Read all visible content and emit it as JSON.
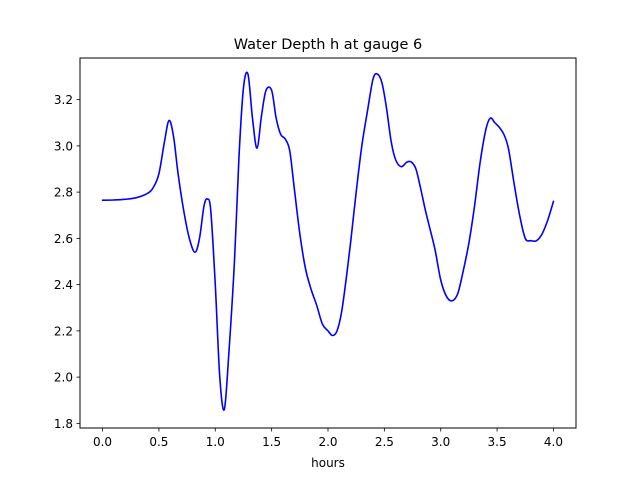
{
  "chart_data": {
    "type": "line",
    "title": "Water Depth h at gauge 6",
    "xlabel": "hours",
    "ylabel": "",
    "xlim": [
      -0.2,
      4.2
    ],
    "ylim": [
      1.78,
      3.38
    ],
    "xticks": [
      0.0,
      0.5,
      1.0,
      1.5,
      2.0,
      2.5,
      3.0,
      3.5,
      4.0
    ],
    "xtick_labels": [
      "0.0",
      "0.5",
      "1.0",
      "1.5",
      "2.0",
      "2.5",
      "3.0",
      "3.5",
      "4.0"
    ],
    "yticks": [
      1.8,
      2.0,
      2.2,
      2.4,
      2.6,
      2.8,
      3.0,
      3.2
    ],
    "ytick_labels": [
      "1.8",
      "2.0",
      "2.2",
      "2.4",
      "2.6",
      "2.8",
      "3.0",
      "3.2"
    ],
    "grid": false,
    "series": [
      {
        "color": "#0000ff",
        "x": [
          0.0,
          0.1,
          0.2,
          0.3,
          0.4,
          0.45,
          0.5,
          0.55,
          0.59,
          0.63,
          0.67,
          0.72,
          0.77,
          0.82,
          0.86,
          0.9,
          0.93,
          0.96,
          1.0,
          1.04,
          1.08,
          1.12,
          1.17,
          1.21,
          1.25,
          1.29,
          1.33,
          1.37,
          1.41,
          1.45,
          1.5,
          1.54,
          1.58,
          1.62,
          1.66,
          1.7,
          1.75,
          1.8,
          1.85,
          1.9,
          1.95,
          2.0,
          2.04,
          2.08,
          2.12,
          2.16,
          2.2,
          2.25,
          2.3,
          2.35,
          2.4,
          2.44,
          2.48,
          2.52,
          2.56,
          2.6,
          2.65,
          2.7,
          2.74,
          2.78,
          2.82,
          2.86,
          2.9,
          2.95,
          3.0,
          3.05,
          3.1,
          3.15,
          3.2,
          3.25,
          3.3,
          3.35,
          3.4,
          3.44,
          3.48,
          3.52,
          3.56,
          3.6,
          3.65,
          3.7,
          3.75,
          3.8,
          3.85,
          3.9,
          3.95,
          4.0
        ],
        "y": [
          2.765,
          2.766,
          2.769,
          2.776,
          2.795,
          2.82,
          2.88,
          3.02,
          3.11,
          3.04,
          2.88,
          2.72,
          2.6,
          2.54,
          2.6,
          2.74,
          2.77,
          2.72,
          2.4,
          2.0,
          1.86,
          2.1,
          2.5,
          2.95,
          3.25,
          3.31,
          3.12,
          2.99,
          3.13,
          3.24,
          3.24,
          3.12,
          3.05,
          3.03,
          2.98,
          2.82,
          2.62,
          2.47,
          2.38,
          2.31,
          2.23,
          2.2,
          2.18,
          2.2,
          2.28,
          2.42,
          2.58,
          2.8,
          3.0,
          3.15,
          3.29,
          3.31,
          3.27,
          3.16,
          3.02,
          2.94,
          2.91,
          2.93,
          2.93,
          2.9,
          2.82,
          2.73,
          2.65,
          2.55,
          2.42,
          2.35,
          2.33,
          2.36,
          2.46,
          2.58,
          2.74,
          2.93,
          3.07,
          3.12,
          3.1,
          3.08,
          3.05,
          2.99,
          2.84,
          2.7,
          2.6,
          2.59,
          2.59,
          2.62,
          2.68,
          2.76
        ]
      }
    ]
  }
}
